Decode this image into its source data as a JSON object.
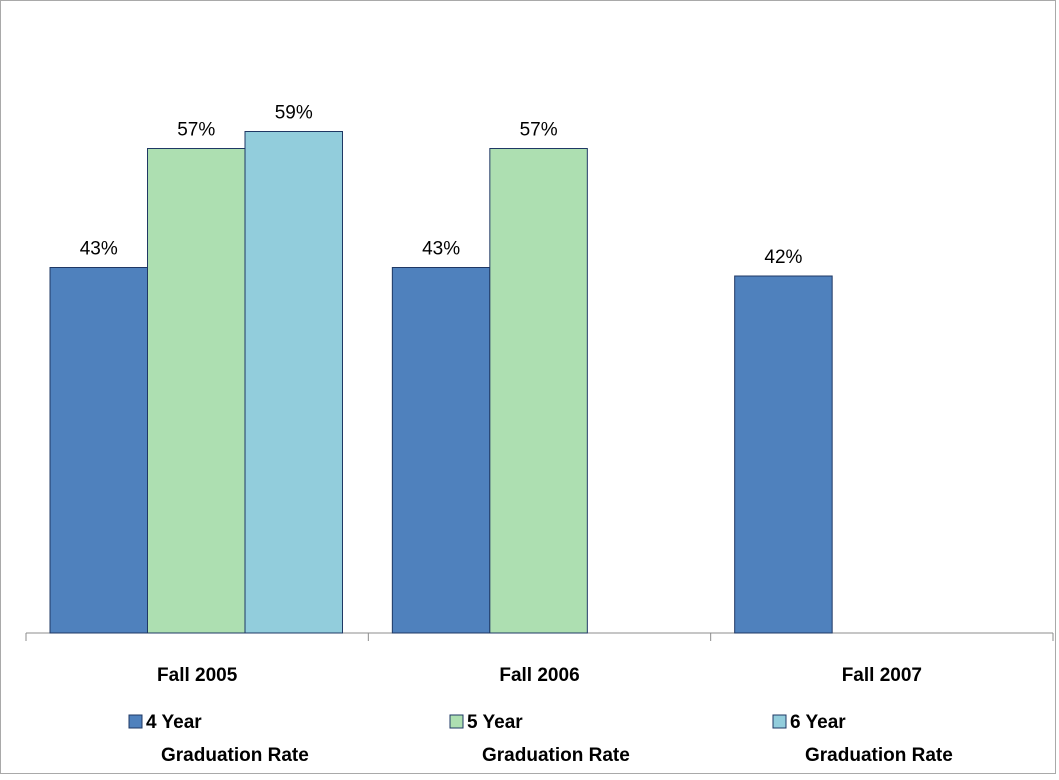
{
  "chart_data": {
    "type": "bar",
    "categories": [
      "Fall 2005",
      "Fall 2006",
      "Fall 2007"
    ],
    "series": [
      {
        "name": "4 Year Graduation Rate",
        "name_lines": [
          "4 Year",
          "Graduation Rate"
        ],
        "color": "#4f81bd",
        "values": [
          43,
          43,
          42
        ],
        "labels": [
          "43%",
          "43%",
          "42%"
        ]
      },
      {
        "name": "5 Year Graduation Rate",
        "name_lines": [
          "5 Year",
          "Graduation Rate"
        ],
        "color": "#addfb1",
        "values": [
          57,
          57,
          null
        ],
        "labels": [
          "57%",
          "57%",
          ""
        ]
      },
      {
        "name": "6 Year Graduation Rate",
        "name_lines": [
          "6 Year",
          "Graduation Rate"
        ],
        "color": "#92cddc",
        "values": [
          59,
          null,
          null
        ],
        "labels": [
          "59%",
          "",
          ""
        ]
      }
    ],
    "ylim": [
      0,
      65
    ],
    "grid": false,
    "legend_position": "bottom",
    "title": "",
    "xlabel": "",
    "ylabel": ""
  }
}
